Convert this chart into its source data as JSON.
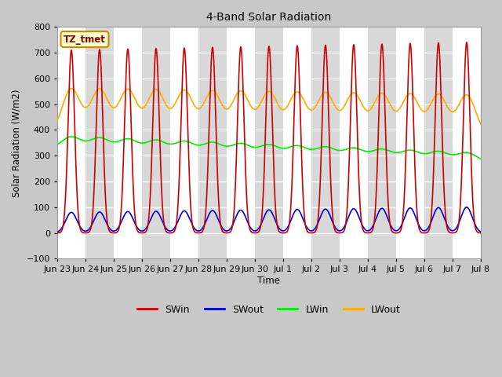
{
  "title": "4-Band Solar Radiation",
  "ylabel": "Solar Radiation (W/m2)",
  "xlabel": "Time",
  "ylim": [
    -100,
    800
  ],
  "yticks": [
    -100,
    0,
    100,
    200,
    300,
    400,
    500,
    600,
    700,
    800
  ],
  "x_tick_labels": [
    "Jun 23",
    "Jun 24",
    "Jun 25",
    "Jun 26",
    "Jun 27",
    "Jun 28",
    "Jun 29",
    "Jun 30",
    "Jul 1",
    "Jul 2",
    "Jul 3",
    "Jul 4",
    "Jul 5",
    "Jul 6",
    "Jul 7",
    "Jul 8"
  ],
  "colors": {
    "SWin": "#cc0000",
    "SWout": "#0000dd",
    "LWin": "#00ee00",
    "LWout": "#ffaa00"
  },
  "fig_bg": "#c8c8c8",
  "plot_bg_even": "#ffffff",
  "plot_bg_odd": "#d8d8d8",
  "annotation_text": "TZ_tmet",
  "annotation_box_color": "#ffffcc",
  "annotation_border_color": "#cc8800",
  "n_days": 15,
  "figsize": [
    6.4,
    4.8
  ],
  "dpi": 100
}
